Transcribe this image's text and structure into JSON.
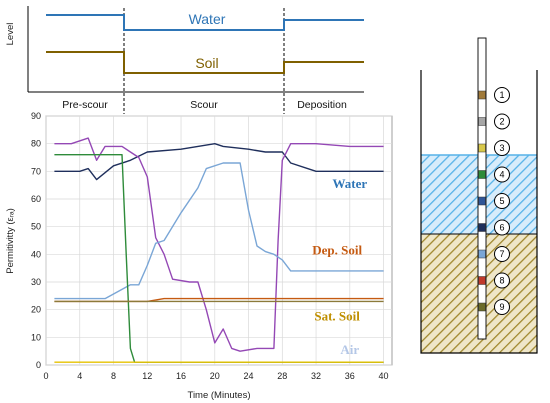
{
  "schematic": {
    "ylabel": "Level",
    "water_label": "Water",
    "soil_label": "Soil",
    "water_color": "#2e75b6",
    "soil_color": "#7f6000",
    "water_levels": [
      {
        "from": 0,
        "to": 9,
        "level": "high"
      },
      {
        "from": 9,
        "to": 28,
        "level": "low"
      },
      {
        "from": 28,
        "to": 41,
        "level": "high"
      }
    ],
    "soil_levels": [
      {
        "from": 0,
        "to": 9,
        "level": "high"
      },
      {
        "from": 9,
        "to": 28,
        "level": "low"
      },
      {
        "from": 28,
        "to": 41,
        "level": "mid"
      }
    ]
  },
  "phases": [
    "Pre-scour",
    "Scour",
    "Deposition"
  ],
  "chart_data": {
    "type": "line",
    "title": "",
    "xlabel": "Time (Minutes)",
    "ylabel": "Permitivitty (εᵣₐ)",
    "xlim": [
      0,
      41
    ],
    "ylim": [
      0,
      90
    ],
    "xticks": [
      0,
      4,
      8,
      12,
      16,
      20,
      24,
      28,
      32,
      36,
      40
    ],
    "yticks": [
      0,
      10,
      20,
      30,
      40,
      50,
      60,
      70,
      80,
      90
    ],
    "grid": true,
    "annotations": [
      {
        "text": "Water",
        "x": 36,
        "y": 64,
        "color": "#2e75b6"
      },
      {
        "text": "Dep. Soil",
        "x": 34.5,
        "y": 40,
        "color": "#c55a11"
      },
      {
        "text": "Sat. Soil",
        "x": 34.5,
        "y": 16,
        "color": "#bf8f00"
      },
      {
        "text": "Air",
        "x": 36,
        "y": 4,
        "color": "#b4c7e7"
      }
    ],
    "series": [
      {
        "color": "#1f2f5c",
        "x": [
          1,
          4,
          5,
          6,
          8,
          10,
          12,
          16,
          18,
          20,
          21,
          24,
          26,
          28,
          29,
          32,
          36,
          40
        ],
        "y": [
          70,
          70,
          71,
          67,
          72,
          74,
          77,
          78,
          79,
          80,
          79,
          78,
          77,
          77,
          73,
          70,
          70,
          70
        ]
      },
      {
        "color": "#9448b5",
        "x": [
          1,
          3,
          5,
          6,
          7,
          9,
          10,
          11,
          12,
          13,
          14,
          15,
          17,
          18,
          19,
          20,
          21,
          22,
          23,
          25,
          27,
          27.5,
          28,
          29,
          32,
          36,
          40
        ],
        "y": [
          80,
          80,
          82,
          74,
          79,
          79,
          77,
          75,
          68,
          46,
          40,
          31,
          30,
          30,
          20,
          8,
          13,
          6,
          5,
          6,
          6,
          45,
          74,
          80,
          80,
          79,
          79
        ]
      },
      {
        "color": "#7aa6d6",
        "x": [
          1,
          7,
          10,
          11,
          12,
          13,
          14,
          16,
          18,
          19,
          21,
          23,
          24,
          25,
          26,
          27,
          28,
          29,
          32,
          36,
          40
        ],
        "y": [
          24,
          24,
          29,
          29,
          36,
          44,
          45,
          55,
          64,
          71,
          73,
          73,
          56,
          43,
          41,
          40,
          38,
          34,
          34,
          34,
          34
        ]
      },
      {
        "color": "#2e8b3a",
        "x": [
          1,
          9,
          9.5,
          10,
          10.5,
          12,
          16,
          20,
          24,
          28,
          32,
          36,
          40
        ],
        "y": [
          76,
          76,
          40,
          6,
          1,
          1,
          1,
          1,
          1,
          1,
          1,
          1,
          1
        ]
      },
      {
        "color": "#c55a11",
        "x": [
          1,
          8,
          12,
          14,
          16,
          20,
          24,
          28,
          32,
          36,
          40
        ],
        "y": [
          23,
          23,
          23,
          24,
          24,
          24,
          24,
          24,
          24,
          24,
          24
        ]
      },
      {
        "color": "#8c7a3a",
        "x": [
          1,
          12,
          14,
          20,
          28,
          32,
          36,
          40
        ],
        "y": [
          23,
          23,
          23,
          23,
          23,
          23,
          23,
          23
        ]
      },
      {
        "color": "#e6c200",
        "x": [
          1,
          40
        ],
        "y": [
          1,
          1
        ]
      }
    ]
  },
  "sensors": [
    "1",
    "2",
    "3",
    "4",
    "5",
    "6",
    "7",
    "8",
    "9"
  ],
  "sensor_colors": [
    "#a07a3a",
    "#a6a6a6",
    "#d8c84a",
    "#2e8b3a",
    "#2f5597",
    "#1f2f5c",
    "#7aa6d6",
    "#c0392b",
    "#6b6b2a"
  ]
}
